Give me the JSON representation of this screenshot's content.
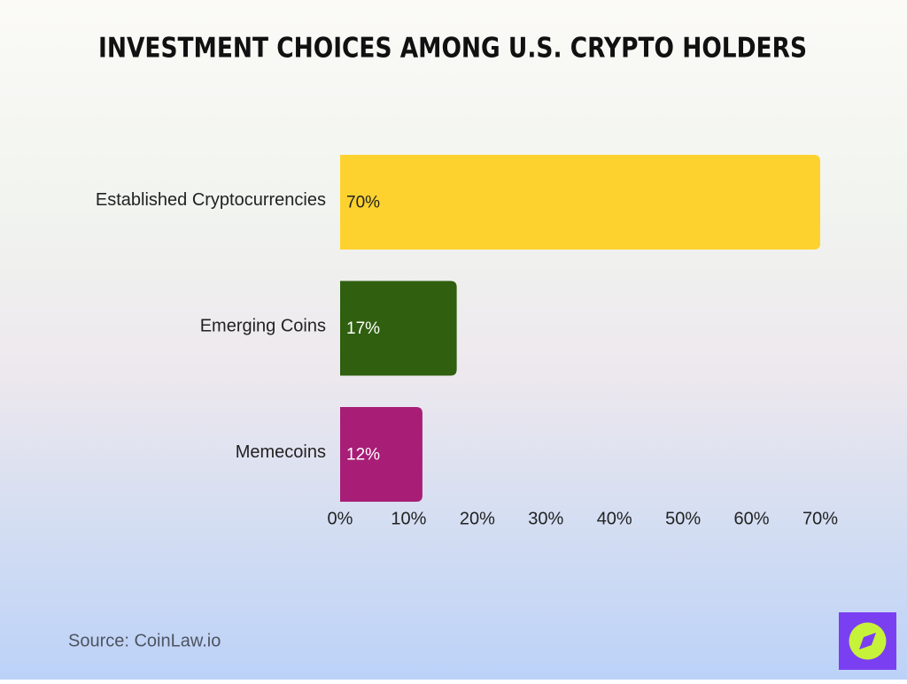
{
  "chart_data": {
    "type": "bar",
    "orientation": "horizontal",
    "title": "Investment Choices Among U.S. Crypto Holders",
    "categories": [
      "Established Cryptocurrencies",
      "Emerging Coins",
      "Memecoins"
    ],
    "values": [
      70,
      17,
      12
    ],
    "value_labels": [
      "70%",
      "17%",
      "12%"
    ],
    "colors": [
      "#fdd22f",
      "#2f5f0f",
      "#a81d76"
    ],
    "xlim": [
      0,
      70
    ],
    "xticks": [
      {
        "value": 0,
        "label": "0%"
      },
      {
        "value": 10,
        "label": "10%"
      },
      {
        "value": 20,
        "label": "20%"
      },
      {
        "value": 30,
        "label": "30%"
      },
      {
        "value": 40,
        "label": "40%"
      },
      {
        "value": 50,
        "label": "50%"
      },
      {
        "value": 60,
        "label": "60%"
      },
      {
        "value": 70,
        "label": "70%"
      }
    ],
    "grid": false,
    "source": "Source: CoinLaw.io"
  }
}
